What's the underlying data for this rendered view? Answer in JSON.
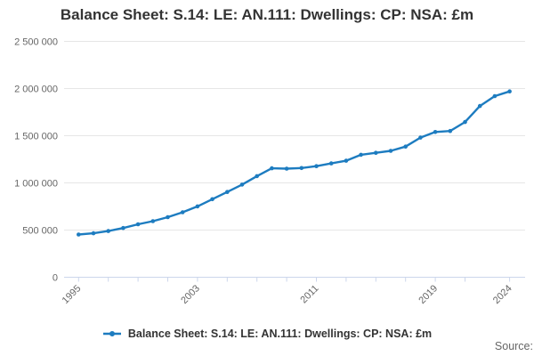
{
  "header": {
    "title": "Balance Sheet: S.14: LE: AN.111: Dwellings: CP: NSA: £m"
  },
  "legend": {
    "label": "Balance Sheet: S.14: LE: AN.111: Dwellings: CP: NSA: £m"
  },
  "source": {
    "label": "Source:"
  },
  "colors": {
    "series": "#1d7cc0",
    "axis_line": "#ccd6eb",
    "gridline": "#e6e6e6",
    "tick_text": "#666666",
    "title_text": "#333333"
  },
  "chart_data": {
    "type": "line",
    "title": "Balance Sheet: S.14: LE: AN.111: Dwellings: CP: NSA: £m",
    "xlabel": "",
    "ylabel": "",
    "legend_position": "bottom",
    "grid": true,
    "marker": "circle",
    "x": [
      1995,
      1996,
      1997,
      1998,
      1999,
      2000,
      2001,
      2002,
      2003,
      2004,
      2005,
      2006,
      2007,
      2008,
      2009,
      2010,
      2011,
      2012,
      2013,
      2014,
      2015,
      2016,
      2017,
      2018,
      2019,
      2020,
      2021,
      2022,
      2023,
      2024
    ],
    "values": [
      453000,
      466000,
      490000,
      522000,
      561000,
      594000,
      637000,
      689000,
      751000,
      827000,
      904000,
      982000,
      1072000,
      1155000,
      1151000,
      1158000,
      1177000,
      1207000,
      1235000,
      1298000,
      1319000,
      1340000,
      1385000,
      1480000,
      1540000,
      1550000,
      1645000,
      1815000,
      1920000,
      1970000
    ],
    "ylim": [
      0,
      2500000
    ],
    "yticks": [
      0,
      500000,
      1000000,
      1500000,
      2000000,
      2500000
    ],
    "ytick_labels": [
      "0",
      "500 000",
      "1 000 000",
      "1 500 000",
      "2 000 000",
      "2 500 000"
    ],
    "xticks": [
      1995,
      1997,
      1999,
      2001,
      2003,
      2005,
      2007,
      2009,
      2011,
      2013,
      2015,
      2017,
      2019,
      2021,
      2024
    ],
    "xtick_labeled": [
      1995,
      2003,
      2011,
      2019,
      2024
    ]
  }
}
